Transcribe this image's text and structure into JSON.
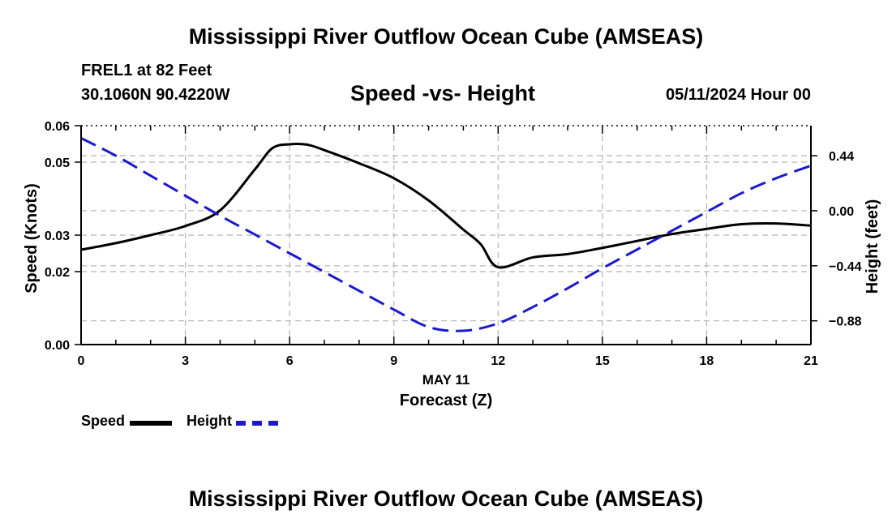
{
  "header": {
    "title": "Mississippi River Outflow Ocean Cube (AMSEAS)",
    "station": "FREL1 at 82 Feet",
    "coordinates": "30.1060N  90.4220W",
    "subtitle": "Speed -vs- Height",
    "datetime": "05/11/2024 Hour 00"
  },
  "legend": {
    "speed_label": "Speed",
    "height_label": "Height"
  },
  "footer": {
    "title": "Mississippi River Outflow Ocean Cube (AMSEAS)"
  },
  "colors": {
    "speed": "#000000",
    "height": "#1a1acc",
    "grid": "#b4b4b4"
  },
  "chart_data": {
    "type": "line",
    "title": "Speed -vs- Height",
    "xlabel": "Forecast (Z)",
    "xlabel_date": "MAY 11",
    "ylabel": "Speed (Knots)",
    "y2label": "Height (feet)",
    "xlim": [
      0,
      21
    ],
    "ylim": [
      0,
      0.06
    ],
    "y2lim": [
      -1.07,
      0.68
    ],
    "x_ticks": [
      0,
      3,
      6,
      9,
      12,
      15,
      18,
      21
    ],
    "y_ticks": [
      "0.00",
      "0.02",
      "0.03",
      "0.05",
      "0.06"
    ],
    "y2_ticks": [
      "-0.88",
      "-0.44",
      "0.00",
      "0.44"
    ],
    "grid": true,
    "series": [
      {
        "name": "Speed",
        "axis": "left",
        "style": "solid",
        "x": [
          0,
          1,
          2,
          3,
          4,
          5,
          5.5,
          6,
          6.5,
          7,
          8,
          9,
          10,
          11,
          11.5,
          12,
          13,
          14,
          15,
          16,
          17,
          18,
          19,
          20,
          21
        ],
        "values": [
          0.026,
          0.0278,
          0.03,
          0.0325,
          0.0368,
          0.048,
          0.0538,
          0.0549,
          0.0548,
          0.0533,
          0.0497,
          0.0456,
          0.0395,
          0.0315,
          0.0275,
          0.0212,
          0.0239,
          0.0248,
          0.0265,
          0.0284,
          0.0303,
          0.0317,
          0.033,
          0.0332,
          0.0326
        ]
      },
      {
        "name": "Height",
        "axis": "right",
        "style": "dashed",
        "x": [
          0,
          1,
          2,
          3,
          4,
          5,
          6,
          7,
          8,
          9,
          10,
          11,
          12,
          13,
          14,
          15,
          16,
          17,
          18,
          19,
          20,
          21
        ],
        "values": [
          0.58,
          0.44,
          0.28,
          0.12,
          -0.04,
          -0.19,
          -0.34,
          -0.49,
          -0.64,
          -0.79,
          -0.93,
          -0.96,
          -0.9,
          -0.77,
          -0.62,
          -0.46,
          -0.31,
          -0.16,
          -0.01,
          0.14,
          0.26,
          0.36
        ]
      }
    ]
  }
}
